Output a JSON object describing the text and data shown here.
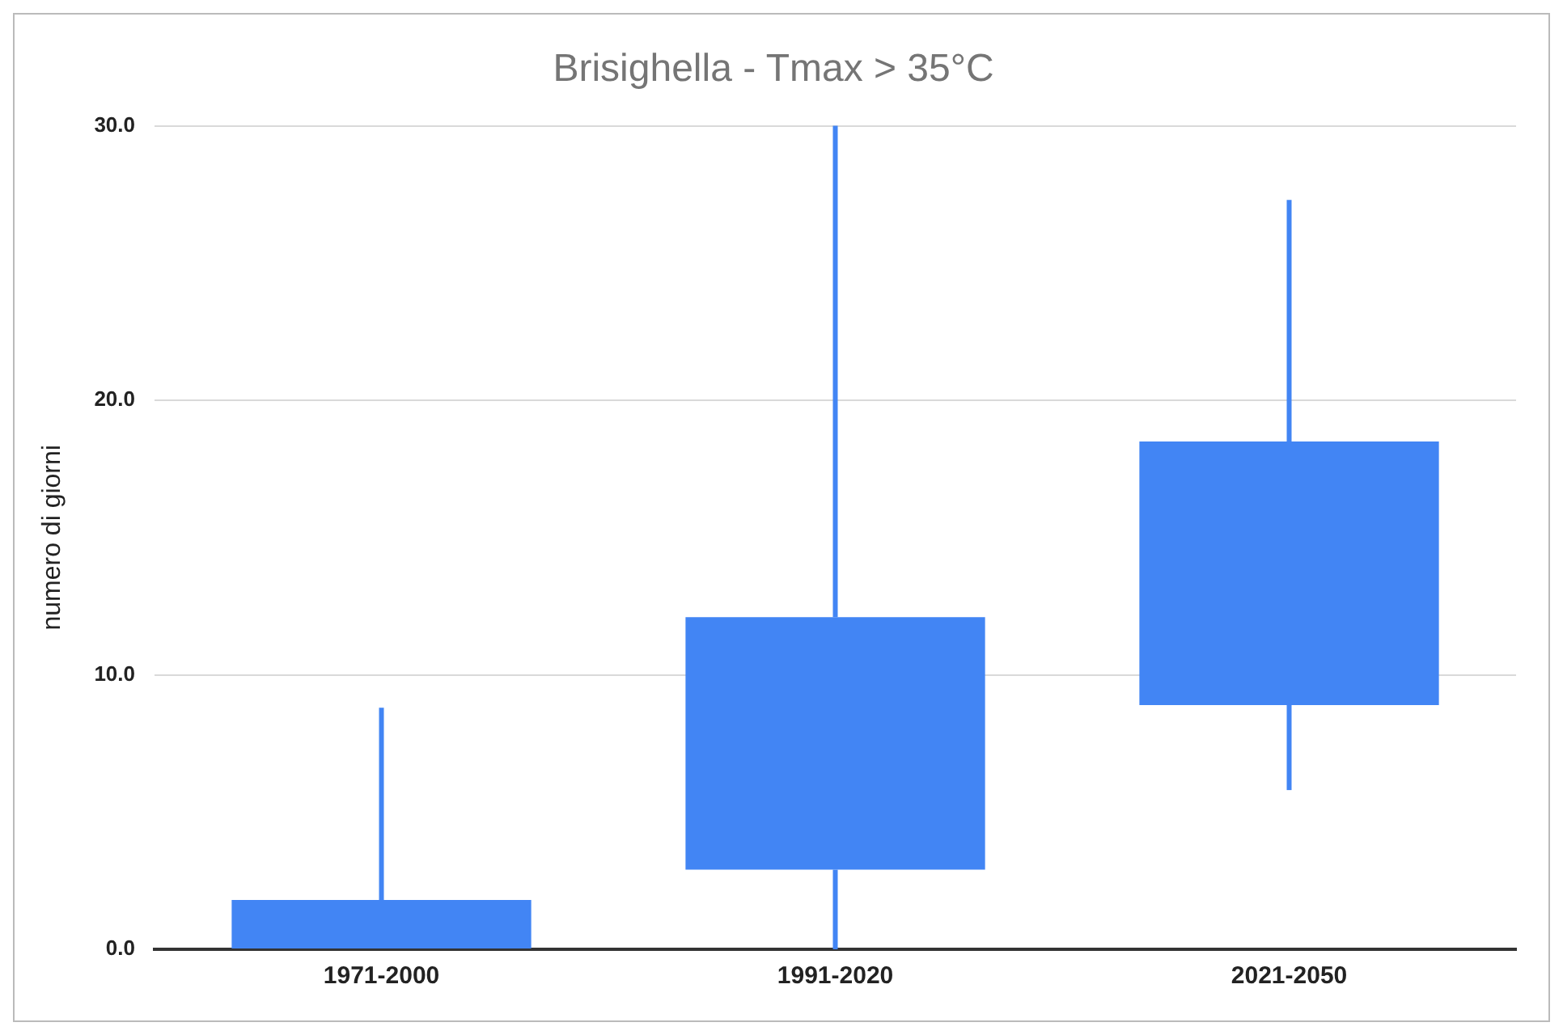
{
  "chart_data": {
    "type": "candlestick",
    "title": "Brisighella - Tmax > 35°C",
    "ylabel": "numero di giorni",
    "categories": [
      "1971-2000",
      "1991-2020",
      "2021-2050"
    ],
    "ohlc": [
      [
        0,
        8.8,
        0,
        1.8
      ],
      [
        2.9,
        30,
        0,
        12.1
      ],
      [
        8.9,
        27.3,
        5.8,
        18.5
      ]
    ],
    "color": "#4285f4",
    "ylim": [
      0,
      30
    ],
    "yticks": [
      {
        "value": 0,
        "label": "0.0"
      },
      {
        "value": 10,
        "label": "10.0"
      },
      {
        "value": 20,
        "label": "20.0"
      },
      {
        "value": 30,
        "label": "30.0"
      }
    ],
    "grid": "y",
    "legend": false
  }
}
